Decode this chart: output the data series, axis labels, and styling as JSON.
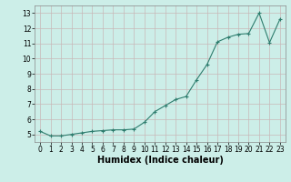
{
  "x": [
    0,
    1,
    2,
    3,
    4,
    5,
    6,
    7,
    8,
    9,
    10,
    11,
    12,
    13,
    14,
    15,
    16,
    17,
    18,
    19,
    20,
    21,
    22,
    23
  ],
  "y": [
    5.2,
    4.9,
    4.9,
    5.0,
    5.1,
    5.2,
    5.25,
    5.3,
    5.3,
    5.35,
    5.8,
    6.5,
    6.9,
    7.3,
    7.5,
    8.6,
    9.6,
    11.1,
    11.4,
    11.6,
    11.65,
    13.0,
    11.05,
    12.6
  ],
  "xlabel": "Humidex (Indice chaleur)",
  "line_color": "#2e7d6e",
  "marker": "+",
  "bg_color": "#cceee8",
  "grid_color_h": "#c8b8b8",
  "grid_color_v": "#c8b8b8",
  "ylim": [
    4.5,
    13.5
  ],
  "xlim": [
    -0.5,
    23.5
  ],
  "yticks": [
    5,
    6,
    7,
    8,
    9,
    10,
    11,
    12,
    13
  ],
  "xticks": [
    0,
    1,
    2,
    3,
    4,
    5,
    6,
    7,
    8,
    9,
    10,
    11,
    12,
    13,
    14,
    15,
    16,
    17,
    18,
    19,
    20,
    21,
    22,
    23
  ],
  "xlabel_fontsize": 7,
  "tick_fontsize": 5.5,
  "linewidth": 0.8,
  "markersize": 3,
  "markeredgewidth": 0.8
}
